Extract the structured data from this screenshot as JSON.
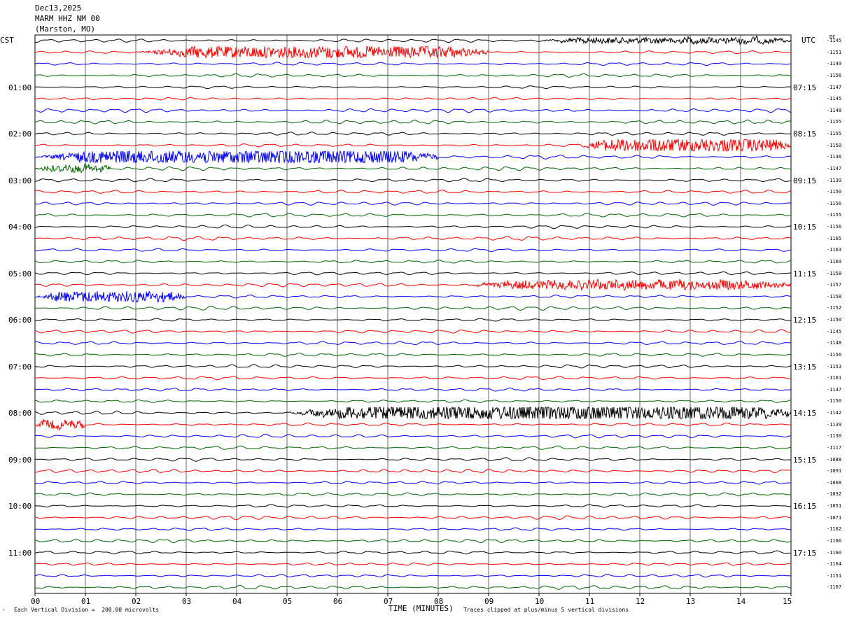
{
  "header": {
    "date": "Dec13,2025",
    "station": "MARM HHZ NM 00",
    "location": "(Marston, MO)"
  },
  "axes": {
    "left_zone": "CST",
    "right_zone": "UTC",
    "dc_header": "DC"
  },
  "chart_data": {
    "type": "line",
    "title": "",
    "xlabel": "TIME (MINUTES)",
    "ylabel": "",
    "xlim": [
      0,
      15
    ],
    "x_ticks": [
      "00",
      "01",
      "02",
      "03",
      "04",
      "05",
      "06",
      "07",
      "08",
      "09",
      "10",
      "11",
      "12",
      "13",
      "14",
      "15"
    ],
    "trace_colors": [
      "#000000",
      "#ff0000",
      "#0000ff",
      "#006400"
    ],
    "trace_count": 48,
    "trace_minutes": 15,
    "left_hour_labels": [
      "01:00",
      "02:00",
      "03:00",
      "04:00",
      "05:00",
      "06:00",
      "07:00",
      "08:00",
      "09:00",
      "10:00",
      "11:00"
    ],
    "right_hour_labels": [
      "07:15",
      "08:15",
      "09:15",
      "10:15",
      "11:15",
      "12:15",
      "13:15",
      "14:15",
      "15:15",
      "16:15",
      "17:15"
    ],
    "dc_offsets": [
      -1145,
      -1151,
      -1149,
      -1156,
      -1147,
      -1145,
      -1148,
      -1155,
      -1155,
      -1150,
      -1136,
      -1147,
      -1139,
      -1150,
      -1156,
      -1155,
      -1156,
      -1165,
      -1163,
      -1169,
      -1158,
      -1157,
      -1158,
      -1152,
      -1150,
      -1145,
      -1148,
      -1156,
      -1153,
      -1161,
      -1147,
      -1150,
      -1142,
      -1139,
      -1130,
      -1117,
      -1088,
      -1091,
      -1068,
      -1032,
      -1051,
      -1071,
      -1162,
      -1166,
      -1160,
      -1164,
      -1151,
      -1167
    ],
    "noise_events": [
      {
        "trace": 0,
        "start_min": 10.0,
        "end_min": 15.0,
        "level": 1.2
      },
      {
        "trace": 1,
        "start_min": 2.0,
        "end_min": 9.0,
        "level": 2.4
      },
      {
        "trace": 9,
        "start_min": 10.8,
        "end_min": 15.0,
        "level": 3.0
      },
      {
        "trace": 10,
        "start_min": 0.0,
        "end_min": 8.0,
        "level": 3.0
      },
      {
        "trace": 11,
        "start_min": 0.0,
        "end_min": 1.5,
        "level": 1.5
      },
      {
        "trace": 21,
        "start_min": 8.5,
        "end_min": 15.0,
        "level": 1.8
      },
      {
        "trace": 22,
        "start_min": 0.0,
        "end_min": 3.0,
        "level": 2.2
      },
      {
        "trace": 32,
        "start_min": 5.0,
        "end_min": 15.0,
        "level": 3.3
      },
      {
        "trace": 33,
        "start_min": 0.0,
        "end_min": 1.0,
        "level": 1.8
      }
    ],
    "annotations": {
      "vertical_division": "Each Vertical Division =  200.00 microvolts",
      "clip_note": "Traces clipped at plus/minus 5 vertical divisions"
    }
  }
}
